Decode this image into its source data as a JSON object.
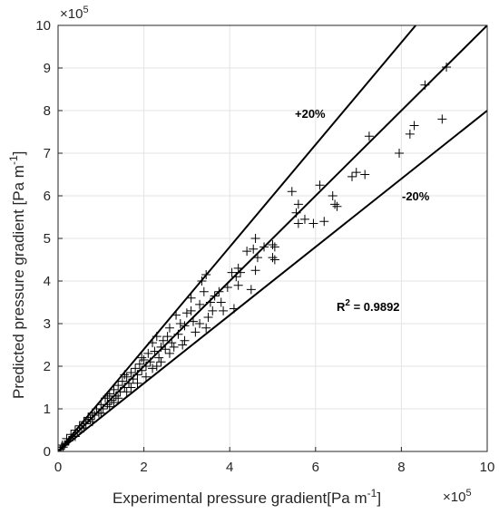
{
  "chart_data": {
    "type": "scatter",
    "xlabel": "Experimental pressure gradient[Pa  m",
    "xlabel_sup": "-1",
    "xlabel_end": "]",
    "ylabel": "Predicted pressure gradient [Pa m",
    "ylabel_sup": "-1",
    "ylabel_end": "]",
    "x_exponent": "×10",
    "x_exponent_power": "5",
    "y_exponent": "×10",
    "y_exponent_power": "5",
    "xlim": [
      0,
      10
    ],
    "ylim": [
      0,
      10
    ],
    "x_ticks": [
      "0",
      "2",
      "4",
      "6",
      "8",
      "10"
    ],
    "y_ticks": [
      "0",
      "1",
      "2",
      "3",
      "4",
      "5",
      "6",
      "7",
      "8",
      "9",
      "10"
    ],
    "grid": true,
    "marker": "+",
    "reference_lines": [
      {
        "label": "+20%",
        "slope": 1.2
      },
      {
        "label": "",
        "slope": 1.0
      },
      {
        "label": "-20%",
        "slope": 0.8
      }
    ],
    "annotations": {
      "plus20": "+20%",
      "minus20": "-20%",
      "r2_prefix": "R",
      "r2_sup": "2",
      "r2_value": " = 0.9892"
    },
    "points": [
      [
        9.05,
        9.02
      ],
      [
        8.55,
        8.6
      ],
      [
        8.95,
        7.8
      ],
      [
        8.3,
        7.65
      ],
      [
        8.2,
        7.45
      ],
      [
        7.95,
        7.0
      ],
      [
        7.25,
        7.4
      ],
      [
        7.15,
        6.5
      ],
      [
        6.95,
        6.55
      ],
      [
        6.85,
        6.45
      ],
      [
        6.4,
        6.0
      ],
      [
        6.45,
        5.8
      ],
      [
        6.5,
        5.75
      ],
      [
        6.1,
        6.25
      ],
      [
        6.2,
        5.4
      ],
      [
        5.95,
        5.35
      ],
      [
        5.6,
        5.8
      ],
      [
        5.55,
        5.6
      ],
      [
        5.45,
        6.1
      ],
      [
        5.6,
        5.35
      ],
      [
        5.75,
        5.45
      ],
      [
        5.0,
        4.85
      ],
      [
        5.05,
        4.8
      ],
      [
        5.05,
        4.5
      ],
      [
        5.0,
        4.55
      ],
      [
        4.8,
        4.8
      ],
      [
        4.6,
        5.0
      ],
      [
        4.55,
        4.75
      ],
      [
        4.65,
        4.55
      ],
      [
        4.6,
        4.25
      ],
      [
        4.4,
        4.7
      ],
      [
        4.2,
        4.3
      ],
      [
        4.25,
        4.2
      ],
      [
        4.15,
        4.1
      ],
      [
        4.2,
        3.9
      ],
      [
        4.5,
        3.8
      ],
      [
        4.05,
        4.2
      ],
      [
        3.95,
        3.85
      ],
      [
        3.45,
        4.15
      ],
      [
        3.35,
        4.0
      ],
      [
        3.4,
        3.75
      ],
      [
        3.65,
        3.65
      ],
      [
        3.55,
        3.5
      ],
      [
        3.75,
        3.75
      ],
      [
        3.8,
        3.5
      ],
      [
        3.85,
        3.3
      ],
      [
        4.1,
        3.35
      ],
      [
        3.3,
        3.45
      ],
      [
        3.1,
        3.3
      ],
      [
        3.5,
        3.15
      ],
      [
        3.3,
        3.0
      ],
      [
        3.15,
        3.05
      ],
      [
        3.0,
        3.25
      ],
      [
        3.45,
        2.9
      ],
      [
        2.95,
        2.95
      ],
      [
        3.1,
        3.6
      ],
      [
        2.75,
        3.2
      ],
      [
        2.8,
        2.75
      ],
      [
        2.95,
        2.6
      ],
      [
        2.65,
        2.55
      ],
      [
        2.6,
        2.9
      ],
      [
        2.55,
        2.7
      ],
      [
        2.45,
        2.6
      ],
      [
        2.4,
        2.45
      ],
      [
        2.3,
        2.7
      ],
      [
        2.35,
        2.2
      ],
      [
        2.5,
        2.4
      ],
      [
        2.25,
        2.35
      ],
      [
        2.2,
        2.55
      ],
      [
        2.15,
        2.1
      ],
      [
        2.1,
        2.3
      ],
      [
        2.05,
        2.0
      ],
      [
        2.0,
        2.15
      ],
      [
        1.95,
        1.9
      ],
      [
        1.9,
        2.05
      ],
      [
        1.85,
        1.8
      ],
      [
        1.8,
        1.95
      ],
      [
        1.75,
        1.7
      ],
      [
        1.7,
        1.85
      ],
      [
        1.65,
        1.6
      ],
      [
        1.6,
        1.75
      ],
      [
        1.55,
        1.5
      ],
      [
        1.5,
        1.65
      ],
      [
        1.45,
        1.4
      ],
      [
        1.4,
        1.55
      ],
      [
        1.35,
        1.3
      ],
      [
        1.3,
        1.45
      ],
      [
        1.25,
        1.2
      ],
      [
        1.2,
        1.35
      ],
      [
        1.15,
        1.1
      ],
      [
        1.1,
        1.25
      ],
      [
        1.05,
        1.0
      ],
      [
        1.0,
        1.1
      ],
      [
        0.95,
        0.9
      ],
      [
        0.9,
        1.0
      ],
      [
        0.85,
        0.85
      ],
      [
        0.8,
        0.9
      ],
      [
        0.75,
        0.75
      ],
      [
        0.7,
        0.8
      ],
      [
        0.65,
        0.65
      ],
      [
        0.6,
        0.7
      ],
      [
        0.55,
        0.55
      ],
      [
        0.5,
        0.6
      ],
      [
        0.45,
        0.45
      ],
      [
        0.4,
        0.5
      ],
      [
        0.35,
        0.35
      ],
      [
        0.3,
        0.4
      ],
      [
        0.25,
        0.25
      ],
      [
        0.2,
        0.3
      ],
      [
        0.15,
        0.15
      ],
      [
        0.1,
        0.15
      ],
      [
        0.05,
        0.05
      ],
      [
        0.08,
        0.1
      ],
      [
        0.12,
        0.1
      ],
      [
        1.85,
        1.6
      ],
      [
        2.05,
        1.75
      ],
      [
        1.6,
        1.4
      ],
      [
        2.3,
        2.0
      ],
      [
        2.6,
        2.3
      ],
      [
        2.9,
        2.5
      ],
      [
        1.4,
        1.25
      ],
      [
        1.2,
        1.05
      ],
      [
        1.0,
        0.9
      ],
      [
        0.8,
        0.7
      ],
      [
        2.7,
        2.45
      ],
      [
        3.2,
        2.8
      ],
      [
        1.3,
        1.15
      ],
      [
        1.7,
        1.5
      ],
      [
        2.4,
        2.1
      ],
      [
        0.6,
        0.55
      ],
      [
        0.4,
        0.35
      ],
      [
        1.95,
        2.2
      ],
      [
        1.55,
        1.8
      ],
      [
        1.15,
        1.3
      ],
      [
        0.7,
        0.75
      ],
      [
        2.2,
        1.95
      ],
      [
        2.85,
        3.0
      ],
      [
        3.6,
        3.3
      ]
    ]
  }
}
